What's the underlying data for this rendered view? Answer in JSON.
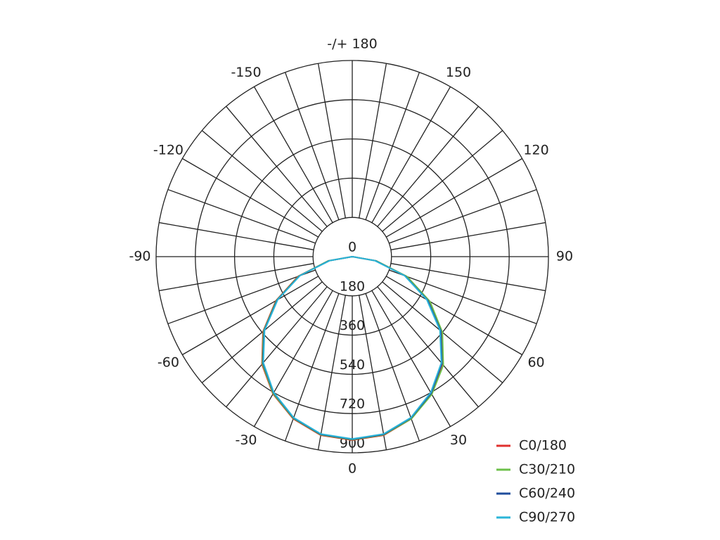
{
  "chart_data": {
    "type": "polar",
    "x": [
      -90,
      -80,
      -70,
      -60,
      -50,
      -40,
      -30,
      -20,
      -10,
      0,
      10,
      20,
      30,
      40,
      50,
      60,
      70,
      80,
      90
    ],
    "series": [
      {
        "name": "C0/180",
        "color": "#e0302e",
        "values": [
          0,
          110,
          265,
          405,
          535,
          645,
          728,
          792,
          832,
          842,
          832,
          792,
          728,
          645,
          535,
          410,
          265,
          110,
          0
        ]
      },
      {
        "name": "C30/210",
        "color": "#6cc04a",
        "values": [
          0,
          112,
          262,
          402,
          532,
          642,
          726,
          790,
          830,
          840,
          830,
          792,
          730,
          650,
          540,
          412,
          268,
          112,
          0
        ]
      },
      {
        "name": "C60/240",
        "color": "#1f4e9c",
        "values": [
          0,
          108,
          258,
          398,
          528,
          638,
          722,
          788,
          828,
          838,
          828,
          788,
          724,
          640,
          530,
          400,
          258,
          108,
          0
        ]
      },
      {
        "name": "C90/270",
        "color": "#2bb5d8",
        "values": [
          0,
          105,
          255,
          395,
          525,
          635,
          720,
          786,
          826,
          836,
          826,
          786,
          720,
          636,
          525,
          395,
          255,
          105,
          0
        ]
      }
    ],
    "rlim": [
      0,
      900
    ],
    "rticks": [
      0,
      180,
      360,
      540,
      720,
      900
    ],
    "angle_ticks": [
      {
        "value": 180,
        "label": "-/+ 180"
      },
      150,
      120,
      90,
      60,
      30,
      0,
      -30,
      -60,
      -90,
      -120,
      -150
    ],
    "angle_grid_step": 10,
    "legend": "lower right"
  }
}
